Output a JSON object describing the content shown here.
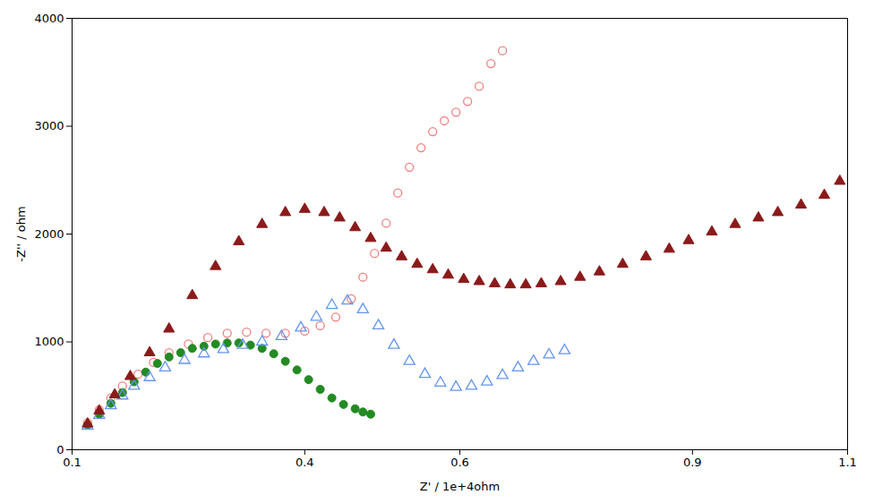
{
  "chart_data": {
    "type": "scatter",
    "xlabel": "Z' / 1e+4ohm",
    "ylabel": "-Z'' / ohm",
    "xlim": [
      0.1,
      1.1
    ],
    "ylim": [
      0,
      4000
    ],
    "xticks": [
      0.1,
      0.4,
      0.6,
      0.9,
      1.1
    ],
    "yticks": [
      0,
      1000,
      2000,
      3000,
      4000
    ],
    "grid": false,
    "series": [
      {
        "color": "#F08080",
        "marker": "circle-open",
        "x": [
          0.12,
          0.135,
          0.15,
          0.165,
          0.185,
          0.205,
          0.225,
          0.25,
          0.275,
          0.3,
          0.325,
          0.35,
          0.375,
          0.4,
          0.42,
          0.44,
          0.46,
          0.475,
          0.49,
          0.505,
          0.52,
          0.535,
          0.55,
          0.565,
          0.58,
          0.595,
          0.61,
          0.625,
          0.64,
          0.655
        ],
        "values": [
          250,
          370,
          480,
          590,
          700,
          810,
          900,
          980,
          1040,
          1080,
          1090,
          1080,
          1080,
          1100,
          1150,
          1230,
          1400,
          1600,
          1820,
          2100,
          2380,
          2620,
          2800,
          2950,
          3050,
          3130,
          3230,
          3370,
          3580,
          3700
        ]
      },
      {
        "color": "#228B22",
        "marker": "circle",
        "x": [
          0.12,
          0.135,
          0.15,
          0.165,
          0.18,
          0.195,
          0.21,
          0.225,
          0.24,
          0.255,
          0.27,
          0.285,
          0.3,
          0.315,
          0.33,
          0.345,
          0.36,
          0.375,
          0.39,
          0.405,
          0.42,
          0.435,
          0.45,
          0.465,
          0.475,
          0.485
        ],
        "values": [
          230,
          330,
          430,
          530,
          630,
          720,
          800,
          860,
          900,
          940,
          960,
          980,
          990,
          990,
          970,
          940,
          890,
          820,
          740,
          650,
          560,
          480,
          420,
          380,
          350,
          330
        ]
      },
      {
        "color": "#6495ED",
        "marker": "triangle-open",
        "x": [
          0.12,
          0.135,
          0.15,
          0.165,
          0.18,
          0.2,
          0.22,
          0.245,
          0.27,
          0.295,
          0.32,
          0.345,
          0.37,
          0.395,
          0.415,
          0.435,
          0.455,
          0.475,
          0.495,
          0.515,
          0.535,
          0.555,
          0.575,
          0.595,
          0.615,
          0.635,
          0.655,
          0.675,
          0.695,
          0.715,
          0.735
        ],
        "values": [
          220,
          320,
          410,
          500,
          590,
          670,
          760,
          830,
          890,
          930,
          970,
          1000,
          1050,
          1130,
          1230,
          1340,
          1380,
          1300,
          1150,
          970,
          820,
          700,
          620,
          580,
          590,
          630,
          690,
          760,
          820,
          880,
          920
        ]
      },
      {
        "color": "#8B1A1A",
        "marker": "triangle",
        "x": [
          0.12,
          0.135,
          0.155,
          0.175,
          0.2,
          0.225,
          0.255,
          0.285,
          0.315,
          0.345,
          0.375,
          0.4,
          0.425,
          0.445,
          0.465,
          0.485,
          0.505,
          0.525,
          0.545,
          0.565,
          0.585,
          0.605,
          0.625,
          0.645,
          0.665,
          0.685,
          0.705,
          0.73,
          0.755,
          0.78,
          0.81,
          0.84,
          0.87,
          0.895,
          0.925,
          0.955,
          0.985,
          1.01,
          1.04,
          1.07,
          1.09
        ],
        "values": [
          240,
          360,
          510,
          680,
          900,
          1120,
          1430,
          1700,
          1930,
          2090,
          2200,
          2230,
          2200,
          2150,
          2060,
          1960,
          1870,
          1790,
          1720,
          1670,
          1620,
          1580,
          1560,
          1540,
          1530,
          1530,
          1540,
          1560,
          1600,
          1650,
          1720,
          1790,
          1860,
          1940,
          2020,
          2090,
          2150,
          2200,
          2270,
          2360,
          2490
        ]
      }
    ]
  }
}
